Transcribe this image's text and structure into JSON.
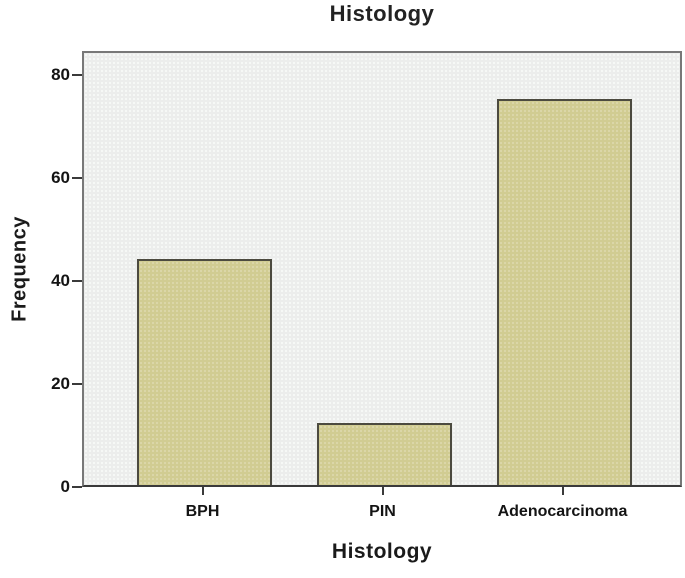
{
  "chart_data": {
    "type": "bar",
    "title": "Histology",
    "xlabel": "Histology",
    "ylabel": "Frequency",
    "categories": [
      "BPH",
      "PIN",
      "Adenocarcinoma"
    ],
    "values": [
      44,
      12,
      75
    ],
    "yticks": [
      0,
      20,
      40,
      60,
      80
    ],
    "ylim": [
      0,
      84.7
    ],
    "grid": false,
    "legend": "none",
    "bar_fill": "#d1cc92",
    "bar_border": "#4c4a3f",
    "plot_background": "#eff0ef",
    "plot_border": "#787878",
    "axis_color": "#3a3a3a",
    "text_color": "#141414"
  }
}
